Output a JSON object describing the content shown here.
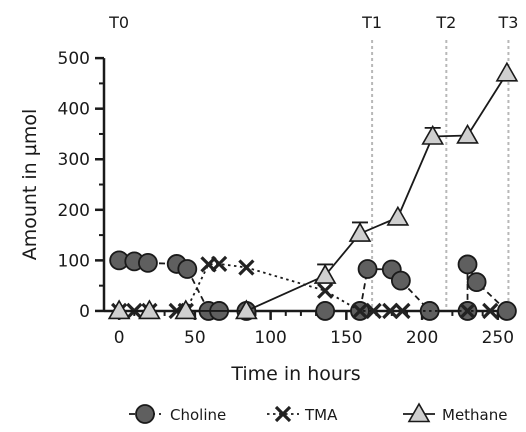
{
  "chart_data": {
    "type": "line",
    "xlabel": "Time in hours",
    "ylabel": "Amount in µmol",
    "xlim": [
      -10,
      262
    ],
    "ylim": [
      -10,
      520
    ],
    "xticks": [
      0,
      50,
      100,
      150,
      200,
      250
    ],
    "yticks": [
      0,
      100,
      200,
      300,
      400,
      500
    ],
    "grid": false,
    "legend_position": "bottom",
    "phases": [
      {
        "label": "T0",
        "x": 0,
        "line": false
      },
      {
        "label": "T1",
        "x": 167,
        "line": true
      },
      {
        "label": "T2",
        "x": 216,
        "line": true
      },
      {
        "label": "T3",
        "x": 257,
        "line": true
      }
    ],
    "series": [
      {
        "name": "Choline",
        "marker": "circle",
        "line": "dashed",
        "color": "#5f5f5f",
        "points": [
          [
            0,
            100
          ],
          [
            10,
            98
          ],
          [
            19,
            95
          ],
          [
            38,
            93
          ],
          [
            45,
            83
          ],
          [
            59,
            0
          ],
          [
            66,
            0
          ],
          [
            84,
            0
          ],
          [
            136,
            0
          ],
          [
            159,
            0
          ],
          [
            164,
            83
          ],
          [
            180,
            82
          ],
          [
            186,
            60
          ],
          [
            205,
            0
          ],
          [
            230,
            0
          ],
          [
            230,
            92
          ],
          [
            236,
            57
          ],
          [
            256,
            0
          ]
        ]
      },
      {
        "name": "TMA",
        "marker": "x",
        "line": "dotted",
        "color": "#222222",
        "points": [
          [
            0,
            0
          ],
          [
            10,
            0
          ],
          [
            20,
            0
          ],
          [
            38,
            0
          ],
          [
            44,
            0
          ],
          [
            59,
            92
          ],
          [
            66,
            93
          ],
          [
            84,
            86
          ],
          [
            136,
            40
          ],
          [
            159,
            0
          ],
          [
            168,
            0
          ],
          [
            179,
            0
          ],
          [
            187,
            0
          ],
          [
            230,
            0
          ],
          [
            245,
            0
          ]
        ]
      },
      {
        "name": "Methane",
        "marker": "triangle",
        "line": "solid",
        "color": "#cfcfcf",
        "points": [
          [
            0,
            0
          ],
          [
            20,
            0
          ],
          [
            44,
            0
          ],
          [
            84,
            0
          ],
          [
            136,
            70
          ],
          [
            159,
            153
          ],
          [
            184,
            185
          ],
          [
            207,
            345
          ],
          [
            230,
            347
          ],
          [
            256,
            470
          ]
        ],
        "errors": [
          null,
          null,
          null,
          null,
          22,
          22,
          null,
          17,
          null,
          null
        ]
      }
    ]
  }
}
